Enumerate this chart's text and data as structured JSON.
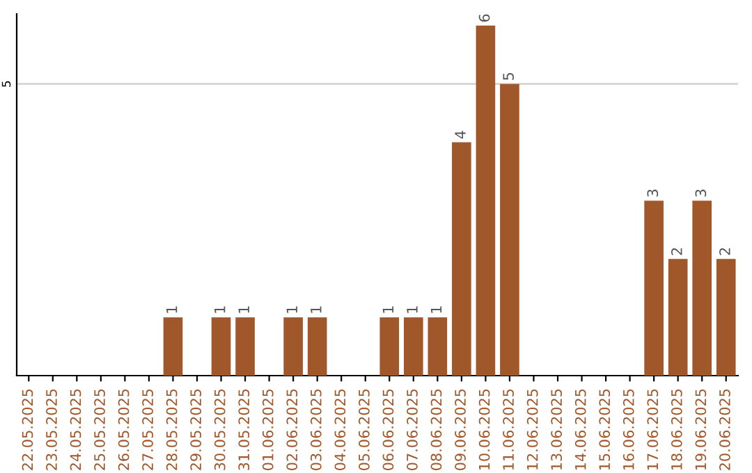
{
  "chart_data": {
    "type": "bar",
    "categories": [
      "22.05.2025",
      "23.05.2025",
      "24.05.2025",
      "25.05.2025",
      "26.05.2025",
      "27.05.2025",
      "28.05.2025",
      "29.05.2025",
      "30.05.2025",
      "31.05.2025",
      "01.06.2025",
      "02.06.2025",
      "03.06.2025",
      "04.06.2025",
      "05.06.2025",
      "06.06.2025",
      "07.06.2025",
      "08.06.2025",
      "09.06.2025",
      "10.06.2025",
      "11.06.2025",
      "12.06.2025",
      "13.06.2025",
      "14.06.2025",
      "15.06.2025",
      "16.06.2025",
      "17.06.2025",
      "18.06.2025",
      "19.06.2025",
      "20.06.2025"
    ],
    "values": [
      0,
      0,
      0,
      0,
      0,
      0,
      1,
      0,
      1,
      1,
      0,
      1,
      1,
      0,
      0,
      1,
      1,
      1,
      4,
      6,
      5,
      0,
      0,
      0,
      0,
      0,
      3,
      2,
      3,
      2
    ],
    "value_labels": [
      null,
      null,
      null,
      null,
      null,
      null,
      "1",
      null,
      "1",
      "1",
      null,
      "1",
      "1",
      null,
      null,
      "1",
      "1",
      "1",
      "4",
      "6",
      "5",
      null,
      null,
      null,
      null,
      null,
      "3",
      "2",
      "3",
      "2"
    ],
    "color": "#a0572a",
    "ylim": [
      0,
      6.2
    ],
    "yticks": [
      5
    ],
    "grid": "y"
  }
}
